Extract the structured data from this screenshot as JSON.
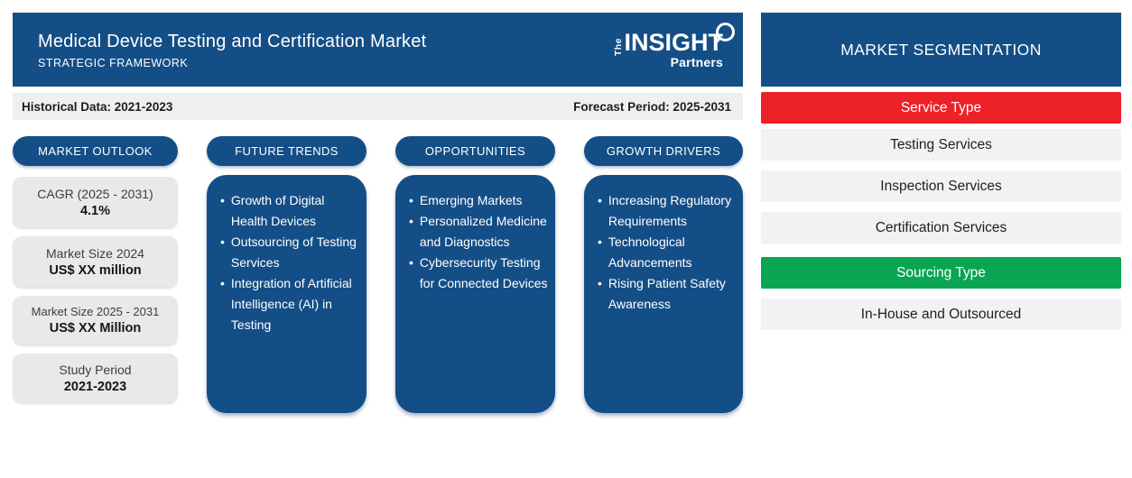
{
  "header": {
    "title": "Medical Device Testing and Certification Market",
    "subtitle": "STRATEGIC FRAMEWORK",
    "logo": {
      "the": "The",
      "insight": "INSIGHT",
      "partners": "Partners"
    }
  },
  "period_bar": {
    "historical": "Historical Data: 2021-2023",
    "forecast": "Forecast Period: 2025-2031"
  },
  "columns": {
    "market_outlook": {
      "title": "MARKET OUTLOOK",
      "cards": [
        {
          "label": "CAGR (2025 - 2031)",
          "value": "4.1%"
        },
        {
          "label": "Market Size 2024",
          "value": "US$ XX million"
        },
        {
          "label": "Market Size 2025 - 2031",
          "value": "US$ XX Million"
        },
        {
          "label": "Study Period",
          "value": "2021-2023"
        }
      ]
    },
    "future_trends": {
      "title": "FUTURE TRENDS",
      "items": [
        "Growth of Digital Health Devices",
        "Outsourcing of Testing Services",
        "Integration of Artificial Intelligence (AI) in Testing"
      ]
    },
    "opportunities": {
      "title": "OPPORTUNITIES",
      "items": [
        "Emerging Markets",
        "Personalized Medicine and Diagnostics",
        "Cybersecurity Testing for Connected Devices"
      ]
    },
    "growth_drivers": {
      "title": "GROWTH DRIVERS",
      "items": [
        "Increasing Regulatory Requirements",
        "Technological Advancements",
        "Rising Patient Safety Awareness"
      ]
    }
  },
  "segmentation": {
    "title": "MARKET SEGMENTATION",
    "groups": [
      {
        "label": "Service Type",
        "color": "#ED2128",
        "items": [
          "Testing Services",
          "Inspection Services",
          "Certification Services"
        ]
      },
      {
        "label": "Sourcing Type",
        "color": "#0AA552",
        "items": [
          "In-House and Outsourced"
        ]
      }
    ]
  },
  "colors": {
    "brand_blue": "#144E86",
    "red": "#ED2128",
    "green": "#0AA552",
    "light_gray": "#EFEFEF",
    "row_gray": "#F2F2F2",
    "card_gray": "#E9E9E9"
  }
}
